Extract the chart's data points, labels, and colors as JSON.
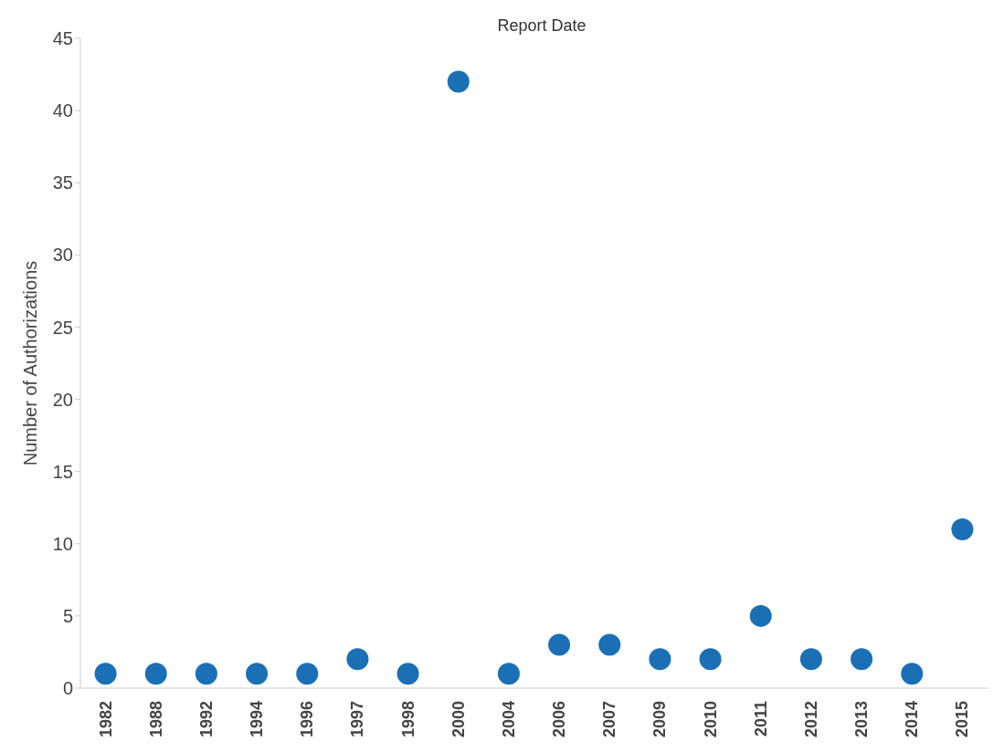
{
  "chart_data": {
    "type": "scatter",
    "title": "Report Date",
    "ylabel": "Number of Authorizations",
    "categories": [
      "1982",
      "1988",
      "1992",
      "1994",
      "1996",
      "1997",
      "1998",
      "2000",
      "2004",
      "2006",
      "2007",
      "2009",
      "2010",
      "2011",
      "2012",
      "2013",
      "2014",
      "2015"
    ],
    "values": [
      1,
      1,
      1,
      1,
      1,
      2,
      1,
      42,
      1,
      3,
      3,
      2,
      2,
      5,
      2,
      2,
      1,
      11
    ],
    "color": "#1b6fb5",
    "marker": "circle",
    "ylim": [
      0,
      45
    ],
    "yticks": [
      0,
      5,
      10,
      15,
      20,
      25,
      30,
      35,
      40,
      45
    ],
    "grid": false,
    "legend": false
  }
}
